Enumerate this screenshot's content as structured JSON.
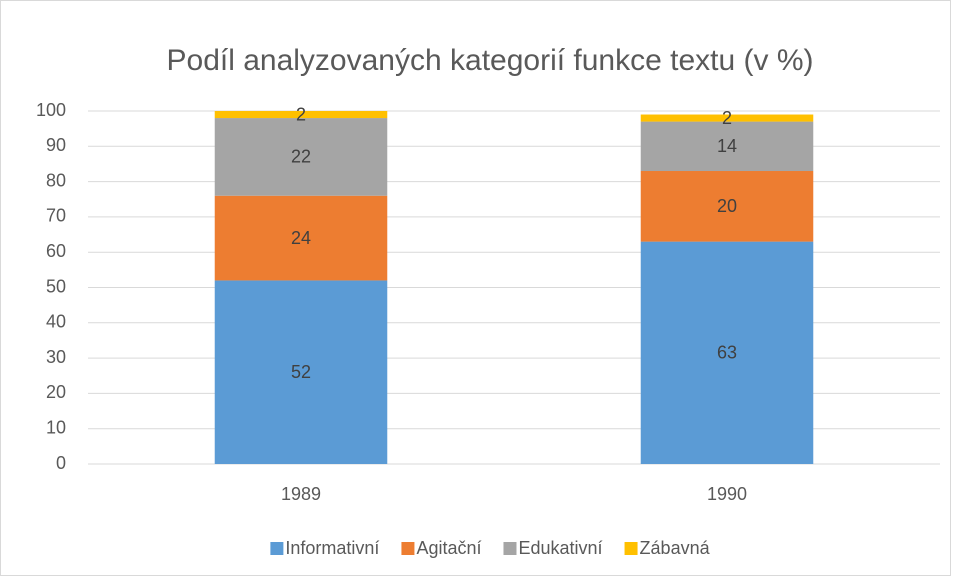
{
  "chart_data": {
    "type": "stacked_bar",
    "title": "Podíl analyzovaných kategorií funkce textu (v %)",
    "categories": [
      "1989",
      "1990"
    ],
    "series": [
      {
        "name": "Informativní",
        "color": "#5b9bd5",
        "values": [
          52,
          63
        ]
      },
      {
        "name": "Agitační",
        "color": "#ed7d31",
        "values": [
          24,
          20
        ]
      },
      {
        "name": "Edukativní",
        "color": "#a5a5a5",
        "values": [
          22,
          14
        ]
      },
      {
        "name": "Zábavná",
        "color": "#ffc000",
        "values": [
          2,
          2
        ]
      }
    ],
    "ylim": [
      0,
      100
    ],
    "yticks": [
      0,
      10,
      20,
      30,
      40,
      50,
      60,
      70,
      80,
      90,
      100
    ],
    "grid": true,
    "legend": "bottom"
  }
}
